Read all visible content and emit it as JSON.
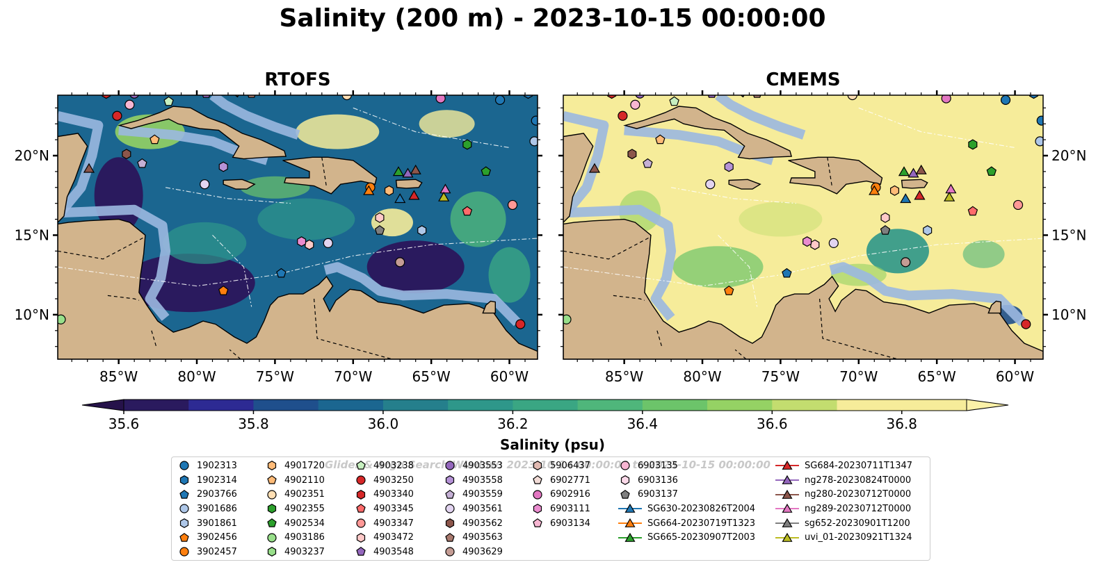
{
  "title": "Salinity (200 m) - 2023-10-15 00:00:00",
  "panels": [
    {
      "id": "rtofs",
      "title": "RTOFS"
    },
    {
      "id": "cmems",
      "title": "CMEMS"
    }
  ],
  "colors": {
    "land": "#d2b48c",
    "shelf": "#9bb8e0",
    "colormap": [
      "#2a1a5e",
      "#2d2a93",
      "#1f4f8c",
      "#1b6690",
      "#257f8c",
      "#2e978a",
      "#3aa683",
      "#4fb67b",
      "#6cc46a",
      "#95d264",
      "#c3dd6f",
      "#f6ec9a"
    ]
  },
  "chart_data": {
    "type": "heatmap",
    "variable": "Salinity",
    "depth": "200 m",
    "time": "2023-10-15 00:00:00",
    "x_ticks": [
      "85°W",
      "80°W",
      "75°W",
      "70°W",
      "65°W",
      "60°W"
    ],
    "x_tick_values": [
      -85,
      -80,
      -75,
      -70,
      -65,
      -60
    ],
    "y_ticks": [
      "10°N",
      "15°N",
      "20°N"
    ],
    "y_tick_values": [
      10,
      15,
      20
    ],
    "xlim": [
      -88.9,
      -58.2
    ],
    "ylim": [
      7.2,
      23.8
    ],
    "colorbar": {
      "label": "Salinity (psu)",
      "vmin": 35.5,
      "vmax": 36.9,
      "levels": [
        35.6,
        35.7,
        35.8,
        35.9,
        36.0,
        36.1,
        36.2,
        36.3,
        36.4,
        36.5,
        36.6,
        36.7,
        36.8,
        36.9
      ],
      "tick_labels": [
        "35.6",
        "35.8",
        "36.0",
        "36.2",
        "36.4",
        "36.6",
        "36.8"
      ],
      "tick_values": [
        35.6,
        35.8,
        36.0,
        36.2,
        36.4,
        36.6,
        36.8
      ],
      "extend": "both"
    },
    "legend_watermark": "Glider & Argo Search Window: 2023-10-14 00:00:00 to 2023-10-15 00:00:00",
    "legend": [
      {
        "label": "1902313",
        "marker": "circle",
        "color": "#1f77b4"
      },
      {
        "label": "1902314",
        "marker": "hexagon",
        "color": "#1f77b4"
      },
      {
        "label": "2903766",
        "marker": "pentagon",
        "color": "#1f77b4"
      },
      {
        "label": "3901686",
        "marker": "circle",
        "color": "#aec7e8"
      },
      {
        "label": "3901861",
        "marker": "hexagon",
        "color": "#aec7e8"
      },
      {
        "label": "3902456",
        "marker": "pentagon",
        "color": "#ff7f0e"
      },
      {
        "label": "3902457",
        "marker": "circle",
        "color": "#ff7f0e"
      },
      {
        "label": "4901720",
        "marker": "hexagon",
        "color": "#ffbb78"
      },
      {
        "label": "4902110",
        "marker": "pentagon",
        "color": "#ffbb78"
      },
      {
        "label": "4902351",
        "marker": "circle",
        "color": "#ffdfb4"
      },
      {
        "label": "4902355",
        "marker": "hexagon",
        "color": "#2ca02c"
      },
      {
        "label": "4902534",
        "marker": "pentagon",
        "color": "#2ca02c"
      },
      {
        "label": "4903186",
        "marker": "circle",
        "color": "#98df8a"
      },
      {
        "label": "4903237",
        "marker": "hexagon",
        "color": "#98df8a"
      },
      {
        "label": "4903238",
        "marker": "pentagon",
        "color": "#c7f0c0"
      },
      {
        "label": "4903250",
        "marker": "circle",
        "color": "#d62728"
      },
      {
        "label": "4903340",
        "marker": "hexagon",
        "color": "#d62728"
      },
      {
        "label": "4903345",
        "marker": "pentagon",
        "color": "#ff6b6b"
      },
      {
        "label": "4903347",
        "marker": "circle",
        "color": "#ff9896"
      },
      {
        "label": "4903472",
        "marker": "hexagon",
        "color": "#ffc9c8"
      },
      {
        "label": "4903548",
        "marker": "pentagon",
        "color": "#9467bd"
      },
      {
        "label": "4903553",
        "marker": "circle",
        "color": "#9467bd"
      },
      {
        "label": "4903558",
        "marker": "hexagon",
        "color": "#b592d6"
      },
      {
        "label": "4903559",
        "marker": "pentagon",
        "color": "#c5b0d5"
      },
      {
        "label": "4903561",
        "marker": "circle",
        "color": "#e2d4f0"
      },
      {
        "label": "4903562",
        "marker": "hexagon",
        "color": "#8c564b"
      },
      {
        "label": "4903563",
        "marker": "pentagon",
        "color": "#a8786d"
      },
      {
        "label": "4903629",
        "marker": "circle",
        "color": "#c49c94"
      },
      {
        "label": "5906437",
        "marker": "hexagon",
        "color": "#e0b9b1"
      },
      {
        "label": "6902771",
        "marker": "pentagon",
        "color": "#f2dcd7"
      },
      {
        "label": "6902916",
        "marker": "circle",
        "color": "#e377c2"
      },
      {
        "label": "6903111",
        "marker": "hexagon",
        "color": "#ea8ccf"
      },
      {
        "label": "6903134",
        "marker": "pentagon",
        "color": "#f7b6d2"
      },
      {
        "label": "6903135",
        "marker": "circle",
        "color": "#f7b6d2"
      },
      {
        "label": "6903136",
        "marker": "hexagon",
        "color": "#fbd9e9"
      },
      {
        "label": "6903137",
        "marker": "pentagon",
        "color": "#7f7f7f"
      },
      {
        "label": "SG630-20230826T2004",
        "marker": "triangle",
        "color": "#1f77b4"
      },
      {
        "label": "SG664-20230719T1323",
        "marker": "triangle",
        "color": "#ff7f0e"
      },
      {
        "label": "SG665-20230907T2003",
        "marker": "triangle",
        "color": "#2ca02c"
      },
      {
        "label": "SG684-20230711T1347",
        "marker": "triangle",
        "color": "#d62728"
      },
      {
        "label": "ng278-20230824T0000",
        "marker": "triangle",
        "color": "#9467bd"
      },
      {
        "label": "ng280-20230712T0000",
        "marker": "triangle",
        "color": "#8c564b"
      },
      {
        "label": "ng289-20230712T0000",
        "marker": "triangle",
        "color": "#e377c2"
      },
      {
        "label": "sg652-20230901T1200",
        "marker": "triangle",
        "color": "#7f7f7f"
      },
      {
        "label": "uvi_01-20230921T1324",
        "marker": "triangle",
        "color": "#bcbd22"
      }
    ],
    "observations": [
      {
        "id": "1902313",
        "lon": -58.3,
        "lat": 22.2
      },
      {
        "id": "1902313",
        "lon": -60.6,
        "lat": 23.5
      },
      {
        "id": "1902314",
        "lon": -58.8,
        "lat": 23.9
      },
      {
        "id": "2903766",
        "lon": -74.6,
        "lat": 12.6
      },
      {
        "id": "3901686",
        "lon": -58.4,
        "lat": 20.9
      },
      {
        "id": "3901861",
        "lon": -65.6,
        "lat": 15.3
      },
      {
        "id": "3902456",
        "lon": -78.3,
        "lat": 11.5
      },
      {
        "id": "3902457",
        "lon": -68.9,
        "lat": 18.0
      },
      {
        "id": "4901720",
        "lon": -67.7,
        "lat": 17.8
      },
      {
        "id": "4902110",
        "lon": -82.7,
        "lat": 21.0
      },
      {
        "id": "4902351",
        "lon": -70.4,
        "lat": 23.8
      },
      {
        "id": "4902355",
        "lon": -62.7,
        "lat": 20.7
      },
      {
        "id": "4902534",
        "lon": -61.5,
        "lat": 19.0
      },
      {
        "id": "4903186",
        "lon": -88.7,
        "lat": 9.7
      },
      {
        "id": "4903238",
        "lon": -81.8,
        "lat": 23.4
      },
      {
        "id": "4903250",
        "lon": -85.1,
        "lat": 22.5
      },
      {
        "id": "4903250",
        "lon": -59.3,
        "lat": 9.4
      },
      {
        "id": "4903340",
        "lon": -85.8,
        "lat": 23.9
      },
      {
        "id": "4903345",
        "lon": -62.7,
        "lat": 16.5
      },
      {
        "id": "4903347",
        "lon": -59.8,
        "lat": 16.9
      },
      {
        "id": "4903472",
        "lon": -68.3,
        "lat": 16.1
      },
      {
        "id": "4903472",
        "lon": -72.8,
        "lat": 14.4
      },
      {
        "id": "4903548",
        "lon": -79.4,
        "lat": 23.9
      },
      {
        "id": "4903553",
        "lon": -84.0,
        "lat": 23.9
      },
      {
        "id": "4903558",
        "lon": -78.3,
        "lat": 19.3
      },
      {
        "id": "4903559",
        "lon": -83.5,
        "lat": 19.5
      },
      {
        "id": "4903561",
        "lon": -71.6,
        "lat": 14.5
      },
      {
        "id": "4903561",
        "lon": -79.5,
        "lat": 18.2
      },
      {
        "id": "4903562",
        "lon": -84.5,
        "lat": 20.1
      },
      {
        "id": "4903563",
        "lon": -76.5,
        "lat": 23.9
      },
      {
        "id": "4903629",
        "lon": -67.0,
        "lat": 13.3
      },
      {
        "id": "6902916",
        "lon": -64.4,
        "lat": 23.6
      },
      {
        "id": "6903111",
        "lon": -73.3,
        "lat": 14.6
      },
      {
        "id": "6903135",
        "lon": -84.3,
        "lat": 23.2
      },
      {
        "id": "6903137",
        "lon": -68.3,
        "lat": 15.3
      },
      {
        "id": "SG630-20230826T2004",
        "lon": -67.0,
        "lat": 17.3
      },
      {
        "id": "SG664-20230719T1323",
        "lon": -69.0,
        "lat": 17.8
      },
      {
        "id": "SG665-20230907T2003",
        "lon": -67.1,
        "lat": 19.0
      },
      {
        "id": "SG684-20230711T1347",
        "lon": -66.1,
        "lat": 17.5
      },
      {
        "id": "ng278-20230824T0000",
        "lon": -66.5,
        "lat": 18.9
      },
      {
        "id": "ng280-20230712T0000",
        "lon": -86.9,
        "lat": 19.2
      },
      {
        "id": "ng280-20230712T0000",
        "lon": -66.0,
        "lat": 19.1
      },
      {
        "id": "ng289-20230712T0000",
        "lon": -64.1,
        "lat": 17.9
      },
      {
        "id": "uvi_01-20230921T1324",
        "lon": -64.2,
        "lat": 17.4
      }
    ]
  }
}
